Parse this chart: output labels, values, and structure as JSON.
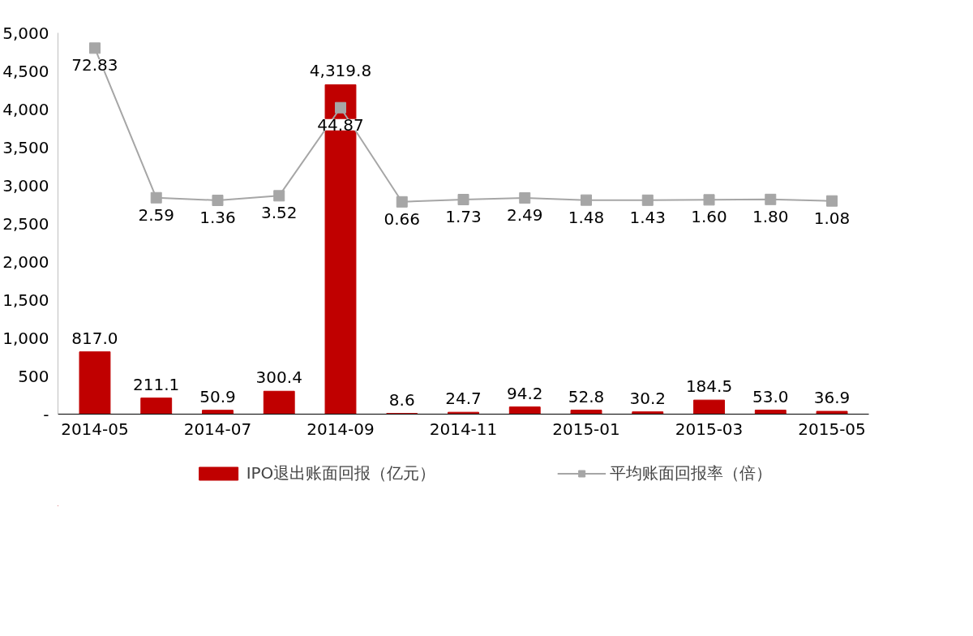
{
  "chart_data": {
    "type": "bar",
    "categories": [
      "2014-05",
      null,
      "2014-07",
      null,
      "2014-09",
      null,
      "2014-11",
      null,
      "2015-01",
      null,
      "2015-03",
      null,
      "2015-05"
    ],
    "series": [
      {
        "name": "IPO退出账面回报（亿元）",
        "color": "#c00000",
        "values": [
          817.0,
          211.1,
          50.9,
          300.4,
          4319.8,
          8.6,
          24.7,
          94.2,
          52.8,
          30.2,
          184.5,
          53.0,
          36.9
        ],
        "value_labels": [
          "817.0",
          "211.1",
          "50.9",
          "300.4",
          "4,319.8",
          "8.6",
          "24.7",
          "94.2",
          "52.8",
          "30.2",
          "184.5",
          "53.0",
          "36.9"
        ]
      },
      {
        "name": "平均账面回报率（倍）",
        "type": "line",
        "axis": "y2",
        "color": "#a6a6a6",
        "values": [
          72.83,
          2.59,
          1.36,
          3.52,
          44.87,
          0.66,
          1.73,
          2.49,
          1.48,
          1.43,
          1.6,
          1.8,
          1.08
        ],
        "value_labels": [
          "72.83",
          "2.59",
          "1.36",
          "3.52",
          "44.87",
          "0.66",
          "1.73",
          "2.49",
          "1.48",
          "1.43",
          "1.60",
          "1.80",
          "1.08"
        ]
      }
    ],
    "ylim": [
      0,
      5000
    ],
    "yticks": [
      {
        "value": 0,
        "label": "-"
      },
      {
        "value": 500,
        "label": "500"
      },
      {
        "value": 1000,
        "label": "1,000"
      },
      {
        "value": 1500,
        "label": "1,500"
      },
      {
        "value": 2000,
        "label": "2,000"
      },
      {
        "value": 2500,
        "label": "2,500"
      },
      {
        "value": 3000,
        "label": "3,000"
      },
      {
        "value": 3500,
        "label": "3,500"
      },
      {
        "value": 4000,
        "label": "4,000"
      },
      {
        "value": 4500,
        "label": "4,500"
      },
      {
        "value": 5000,
        "label": "5,000"
      }
    ],
    "y2lim": [
      -99,
      80
    ],
    "legend": "bottom",
    "grid": false,
    "marker": "square",
    "line_style": "solid"
  }
}
